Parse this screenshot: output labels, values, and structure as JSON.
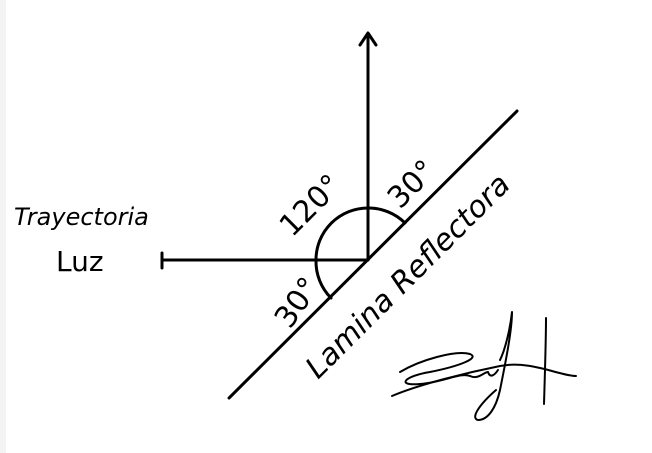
{
  "diagram": {
    "labels": {
      "trajectory_line1": "Trayectoria",
      "trajectory_line2": "Luz",
      "plate": "Lamina Reflectora",
      "angle_top": "120°",
      "angle_right": "30°",
      "angle_lower_left": "30°"
    },
    "angles_deg": {
      "between_horizontal_and_vertical_upper": 120,
      "between_vertical_and_plate": 30,
      "between_horizontal_and_plate_lower": 30
    },
    "colors": {
      "ink": "#000000",
      "background": "#ffffff"
    },
    "signature_present": true
  }
}
